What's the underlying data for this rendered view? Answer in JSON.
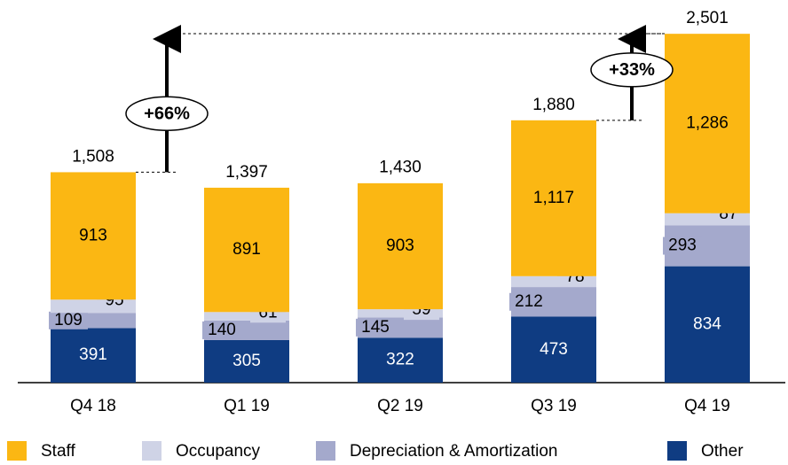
{
  "chart_data": {
    "type": "stacked-bar",
    "categories": [
      "Q4 18",
      "Q1 19",
      "Q2 19",
      "Q3 19",
      "Q4 19"
    ],
    "series": [
      {
        "name": "Other",
        "color": "#0f3c82",
        "values": [
          391,
          305,
          322,
          473,
          834
        ]
      },
      {
        "name": "Depreciation & Amortization",
        "color": "#a4a9cc",
        "values": [
          109,
          140,
          145,
          212,
          293
        ]
      },
      {
        "name": "Occupancy",
        "color": "#cfd3e6",
        "values": [
          95,
          61,
          59,
          78,
          87
        ]
      },
      {
        "name": "Staff",
        "color": "#fbb713",
        "values": [
          913,
          891,
          903,
          1117,
          1286
        ],
        "value_labels": [
          "913",
          "891",
          "903",
          "1,117",
          "1,286"
        ]
      }
    ],
    "totals": [
      1508,
      1397,
      1430,
      1880,
      2501
    ],
    "total_labels": [
      "1,508",
      "1,397",
      "1,430",
      "1,880",
      "2,501"
    ],
    "annotations": [
      "+66%",
      "+33%"
    ],
    "legend_order": [
      3,
      2,
      1,
      0
    ],
    "legend": "bottom"
  }
}
